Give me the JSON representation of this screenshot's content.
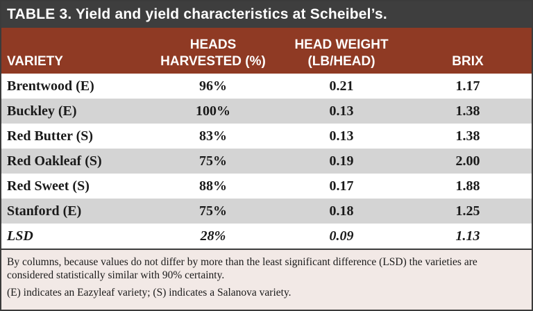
{
  "title": "TABLE 3. Yield and yield characteristics at Scheibel’s.",
  "columns": [
    {
      "line1": "",
      "line2": "VARIETY"
    },
    {
      "line1": "HEADS",
      "line2": "HARVESTED (%)"
    },
    {
      "line1": "HEAD WEIGHT",
      "line2": "(LB/HEAD)"
    },
    {
      "line1": "",
      "line2": "BRIX"
    }
  ],
  "rows": [
    {
      "variety": "Brentwood (E)",
      "harvested": "96%",
      "weight": "0.21",
      "brix": "1.17"
    },
    {
      "variety": "Buckley (E)",
      "harvested": "100%",
      "weight": "0.13",
      "brix": "1.38"
    },
    {
      "variety": "Red Butter (S)",
      "harvested": "83%",
      "weight": "0.13",
      "brix": "1.38"
    },
    {
      "variety": "Red Oakleaf (S)",
      "harvested": "75%",
      "weight": "0.19",
      "brix": "2.00"
    },
    {
      "variety": "Red Sweet (S)",
      "harvested": "88%",
      "weight": "0.17",
      "brix": "1.88"
    },
    {
      "variety": "Stanford (E)",
      "harvested": "75%",
      "weight": "0.18",
      "brix": "1.25"
    },
    {
      "variety": "LSD",
      "harvested": "28%",
      "weight": "0.09",
      "brix": "1.13"
    }
  ],
  "notes": [
    "By columns, because values do not differ by more than the least significant difference (LSD) the varieties are considered statistically similar with 90% certainty.",
    "(E) indicates an Eazyleaf variety; (S) indicates a Salanova variety."
  ]
}
